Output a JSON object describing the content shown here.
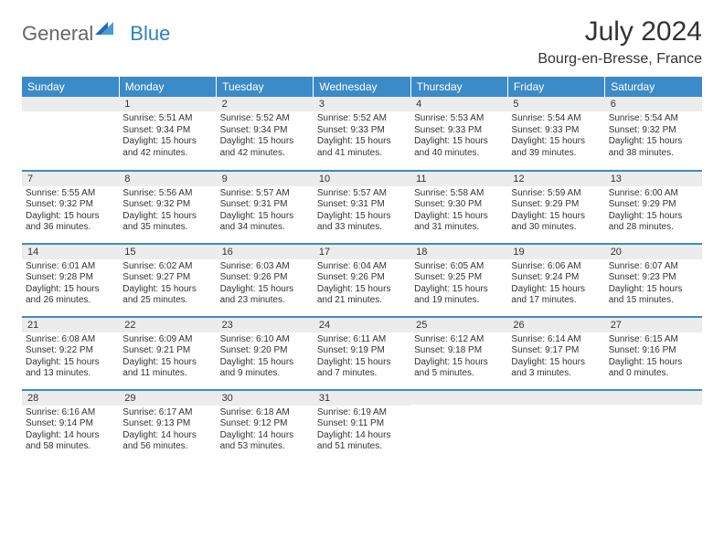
{
  "brand": {
    "part1": "General",
    "part2": "Blue"
  },
  "title": "July 2024",
  "location": "Bourg-en-Bresse, France",
  "colors": {
    "header_bg": "#3b8bc8",
    "header_text": "#ffffff",
    "daynum_bg": "#ececec",
    "rule": "#3b8bc8",
    "brand_blue": "#2f7fc5",
    "text": "#333333",
    "bg": "#ffffff"
  },
  "weekdays": [
    "Sunday",
    "Monday",
    "Tuesday",
    "Wednesday",
    "Thursday",
    "Friday",
    "Saturday"
  ],
  "weeks": [
    [
      {
        "num": "",
        "sunrise": "",
        "sunset": "",
        "daylight": ""
      },
      {
        "num": "1",
        "sunrise": "Sunrise: 5:51 AM",
        "sunset": "Sunset: 9:34 PM",
        "daylight": "Daylight: 15 hours and 42 minutes."
      },
      {
        "num": "2",
        "sunrise": "Sunrise: 5:52 AM",
        "sunset": "Sunset: 9:34 PM",
        "daylight": "Daylight: 15 hours and 42 minutes."
      },
      {
        "num": "3",
        "sunrise": "Sunrise: 5:52 AM",
        "sunset": "Sunset: 9:33 PM",
        "daylight": "Daylight: 15 hours and 41 minutes."
      },
      {
        "num": "4",
        "sunrise": "Sunrise: 5:53 AM",
        "sunset": "Sunset: 9:33 PM",
        "daylight": "Daylight: 15 hours and 40 minutes."
      },
      {
        "num": "5",
        "sunrise": "Sunrise: 5:54 AM",
        "sunset": "Sunset: 9:33 PM",
        "daylight": "Daylight: 15 hours and 39 minutes."
      },
      {
        "num": "6",
        "sunrise": "Sunrise: 5:54 AM",
        "sunset": "Sunset: 9:32 PM",
        "daylight": "Daylight: 15 hours and 38 minutes."
      }
    ],
    [
      {
        "num": "7",
        "sunrise": "Sunrise: 5:55 AM",
        "sunset": "Sunset: 9:32 PM",
        "daylight": "Daylight: 15 hours and 36 minutes."
      },
      {
        "num": "8",
        "sunrise": "Sunrise: 5:56 AM",
        "sunset": "Sunset: 9:32 PM",
        "daylight": "Daylight: 15 hours and 35 minutes."
      },
      {
        "num": "9",
        "sunrise": "Sunrise: 5:57 AM",
        "sunset": "Sunset: 9:31 PM",
        "daylight": "Daylight: 15 hours and 34 minutes."
      },
      {
        "num": "10",
        "sunrise": "Sunrise: 5:57 AM",
        "sunset": "Sunset: 9:31 PM",
        "daylight": "Daylight: 15 hours and 33 minutes."
      },
      {
        "num": "11",
        "sunrise": "Sunrise: 5:58 AM",
        "sunset": "Sunset: 9:30 PM",
        "daylight": "Daylight: 15 hours and 31 minutes."
      },
      {
        "num": "12",
        "sunrise": "Sunrise: 5:59 AM",
        "sunset": "Sunset: 9:29 PM",
        "daylight": "Daylight: 15 hours and 30 minutes."
      },
      {
        "num": "13",
        "sunrise": "Sunrise: 6:00 AM",
        "sunset": "Sunset: 9:29 PM",
        "daylight": "Daylight: 15 hours and 28 minutes."
      }
    ],
    [
      {
        "num": "14",
        "sunrise": "Sunrise: 6:01 AM",
        "sunset": "Sunset: 9:28 PM",
        "daylight": "Daylight: 15 hours and 26 minutes."
      },
      {
        "num": "15",
        "sunrise": "Sunrise: 6:02 AM",
        "sunset": "Sunset: 9:27 PM",
        "daylight": "Daylight: 15 hours and 25 minutes."
      },
      {
        "num": "16",
        "sunrise": "Sunrise: 6:03 AM",
        "sunset": "Sunset: 9:26 PM",
        "daylight": "Daylight: 15 hours and 23 minutes."
      },
      {
        "num": "17",
        "sunrise": "Sunrise: 6:04 AM",
        "sunset": "Sunset: 9:26 PM",
        "daylight": "Daylight: 15 hours and 21 minutes."
      },
      {
        "num": "18",
        "sunrise": "Sunrise: 6:05 AM",
        "sunset": "Sunset: 9:25 PM",
        "daylight": "Daylight: 15 hours and 19 minutes."
      },
      {
        "num": "19",
        "sunrise": "Sunrise: 6:06 AM",
        "sunset": "Sunset: 9:24 PM",
        "daylight": "Daylight: 15 hours and 17 minutes."
      },
      {
        "num": "20",
        "sunrise": "Sunrise: 6:07 AM",
        "sunset": "Sunset: 9:23 PM",
        "daylight": "Daylight: 15 hours and 15 minutes."
      }
    ],
    [
      {
        "num": "21",
        "sunrise": "Sunrise: 6:08 AM",
        "sunset": "Sunset: 9:22 PM",
        "daylight": "Daylight: 15 hours and 13 minutes."
      },
      {
        "num": "22",
        "sunrise": "Sunrise: 6:09 AM",
        "sunset": "Sunset: 9:21 PM",
        "daylight": "Daylight: 15 hours and 11 minutes."
      },
      {
        "num": "23",
        "sunrise": "Sunrise: 6:10 AM",
        "sunset": "Sunset: 9:20 PM",
        "daylight": "Daylight: 15 hours and 9 minutes."
      },
      {
        "num": "24",
        "sunrise": "Sunrise: 6:11 AM",
        "sunset": "Sunset: 9:19 PM",
        "daylight": "Daylight: 15 hours and 7 minutes."
      },
      {
        "num": "25",
        "sunrise": "Sunrise: 6:12 AM",
        "sunset": "Sunset: 9:18 PM",
        "daylight": "Daylight: 15 hours and 5 minutes."
      },
      {
        "num": "26",
        "sunrise": "Sunrise: 6:14 AM",
        "sunset": "Sunset: 9:17 PM",
        "daylight": "Daylight: 15 hours and 3 minutes."
      },
      {
        "num": "27",
        "sunrise": "Sunrise: 6:15 AM",
        "sunset": "Sunset: 9:16 PM",
        "daylight": "Daylight: 15 hours and 0 minutes."
      }
    ],
    [
      {
        "num": "28",
        "sunrise": "Sunrise: 6:16 AM",
        "sunset": "Sunset: 9:14 PM",
        "daylight": "Daylight: 14 hours and 58 minutes."
      },
      {
        "num": "29",
        "sunrise": "Sunrise: 6:17 AM",
        "sunset": "Sunset: 9:13 PM",
        "daylight": "Daylight: 14 hours and 56 minutes."
      },
      {
        "num": "30",
        "sunrise": "Sunrise: 6:18 AM",
        "sunset": "Sunset: 9:12 PM",
        "daylight": "Daylight: 14 hours and 53 minutes."
      },
      {
        "num": "31",
        "sunrise": "Sunrise: 6:19 AM",
        "sunset": "Sunset: 9:11 PM",
        "daylight": "Daylight: 14 hours and 51 minutes."
      },
      {
        "num": "",
        "sunrise": "",
        "sunset": "",
        "daylight": ""
      },
      {
        "num": "",
        "sunrise": "",
        "sunset": "",
        "daylight": ""
      },
      {
        "num": "",
        "sunrise": "",
        "sunset": "",
        "daylight": ""
      }
    ]
  ]
}
